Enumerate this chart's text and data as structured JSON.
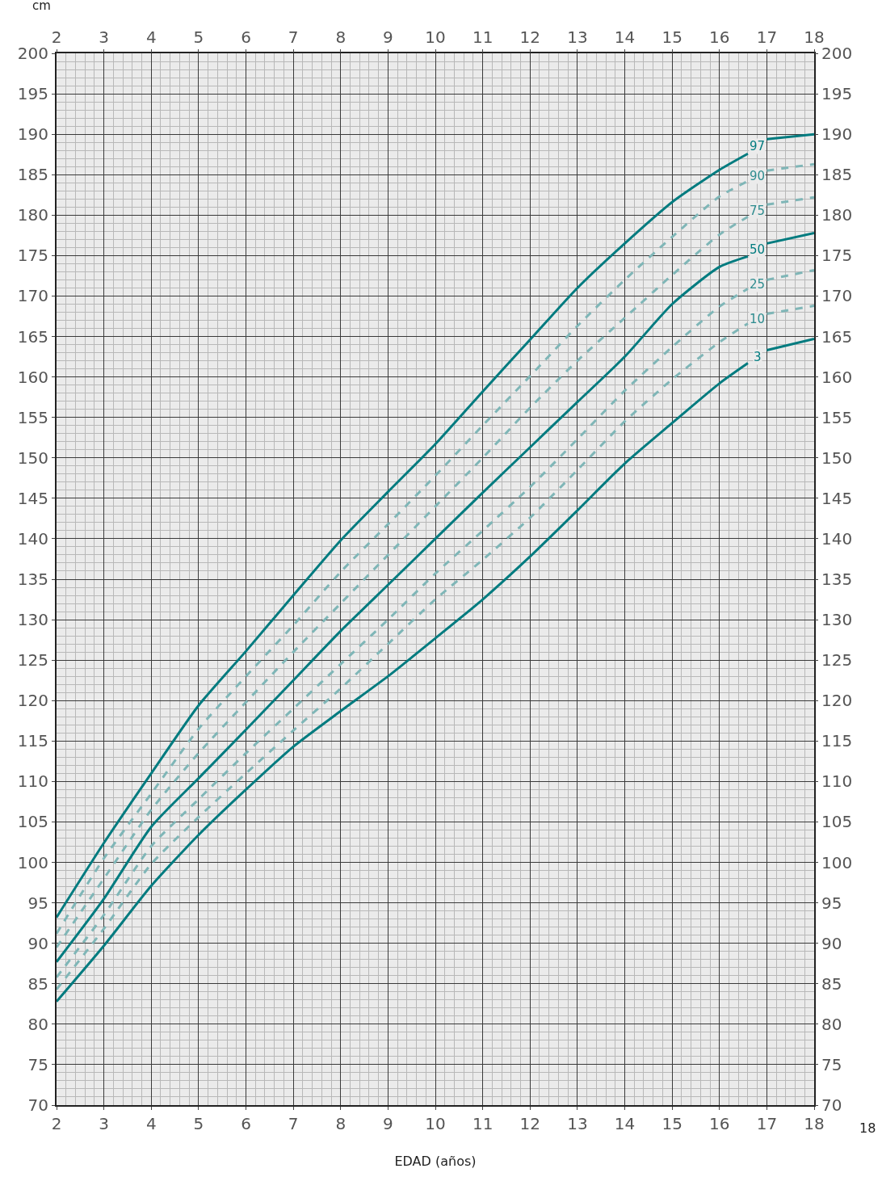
{
  "chart_data": {
    "type": "line",
    "xlabel": "EDAD (años)",
    "ylabel": "cm",
    "x": [
      2,
      3,
      4,
      5,
      6,
      7,
      8,
      9,
      10,
      11,
      12,
      13,
      14,
      15,
      16,
      16.6,
      16.8,
      17,
      18
    ],
    "series": [
      {
        "name": "97",
        "color": "#007b7f",
        "values": [
          93.2,
          102.4,
          111,
          119.4,
          126.1,
          133,
          139.8,
          145.8,
          151.7,
          158.2,
          164.6,
          171,
          176.5,
          181.6,
          185.6,
          187.6,
          null,
          189.4,
          190
        ]
      },
      {
        "name": "90",
        "color": "#7fb6b7",
        "line_style": "dashed",
        "values": [
          91.2,
          100.5,
          108.5,
          116.5,
          123,
          129.3,
          135.9,
          141.8,
          147.8,
          154,
          160.1,
          166.3,
          172,
          177.3,
          182.3,
          184.2,
          null,
          185.5,
          186.3
        ]
      },
      {
        "name": "75",
        "color": "#7fb6b7",
        "line_style": "dashed",
        "values": [
          89.5,
          98,
          106.5,
          113.5,
          119.8,
          126,
          132,
          138,
          144,
          150,
          156.2,
          162,
          167.3,
          172.6,
          177.6,
          179.8,
          null,
          181.3,
          182.2
        ]
      },
      {
        "name": "50",
        "color": "#007b7f",
        "values": [
          87.7,
          95.5,
          104.4,
          110.4,
          116.4,
          122.5,
          128.6,
          134.3,
          140,
          145.7,
          151.3,
          156.9,
          162.5,
          169,
          173.6,
          174.9,
          null,
          176.5,
          177.8
        ]
      },
      {
        "name": "25",
        "color": "#7fb6b7",
        "line_style": "dashed",
        "values": [
          85.8,
          93.5,
          102,
          107.8,
          113.5,
          119,
          124.5,
          130,
          135.7,
          141,
          146.4,
          152.3,
          158.3,
          163.7,
          168.7,
          170.9,
          null,
          172,
          173.2
        ]
      },
      {
        "name": "10",
        "color": "#7fb6b7",
        "line_style": "dashed",
        "values": [
          84.3,
          91.8,
          99.8,
          105.6,
          111,
          116.3,
          121.5,
          127,
          132.5,
          137.4,
          142.6,
          148.5,
          154.5,
          159.7,
          164.3,
          166.6,
          null,
          167.8,
          168.8
        ]
      },
      {
        "name": "3",
        "color": "#007b7f",
        "values": [
          82.8,
          89.7,
          97.1,
          103.4,
          109,
          114.3,
          118.7,
          123,
          127.7,
          132.5,
          137.8,
          143.5,
          149.3,
          154.3,
          159.2,
          161.7,
          null,
          163.3,
          164.7
        ]
      }
    ],
    "xlim": [
      2,
      18
    ],
    "xticks": [
      2,
      3,
      4,
      5,
      6,
      7,
      8,
      9,
      10,
      11,
      12,
      13,
      14,
      15,
      16,
      17,
      18
    ],
    "x2lim": [
      2,
      18
    ],
    "x2ticks": [
      2,
      3,
      4,
      5,
      6,
      7,
      8,
      9,
      10,
      11,
      12,
      13,
      14,
      15,
      16,
      17,
      18
    ],
    "ylim": [
      70,
      200
    ],
    "yticks": [
      70,
      75,
      80,
      85,
      90,
      95,
      100,
      105,
      110,
      115,
      120,
      125,
      130,
      135,
      140,
      145,
      150,
      155,
      160,
      165,
      170,
      175,
      180,
      185,
      190,
      195,
      200
    ],
    "y2lim": [
      70,
      200
    ],
    "y2ticks": [
      70,
      75,
      80,
      85,
      90,
      95,
      100,
      105,
      110,
      115,
      120,
      125,
      130,
      135,
      140,
      145,
      150,
      155,
      160,
      165,
      170,
      175,
      180,
      185,
      190,
      195,
      200
    ],
    "grid": true,
    "legend": false,
    "annotations": [
      "18"
    ]
  }
}
